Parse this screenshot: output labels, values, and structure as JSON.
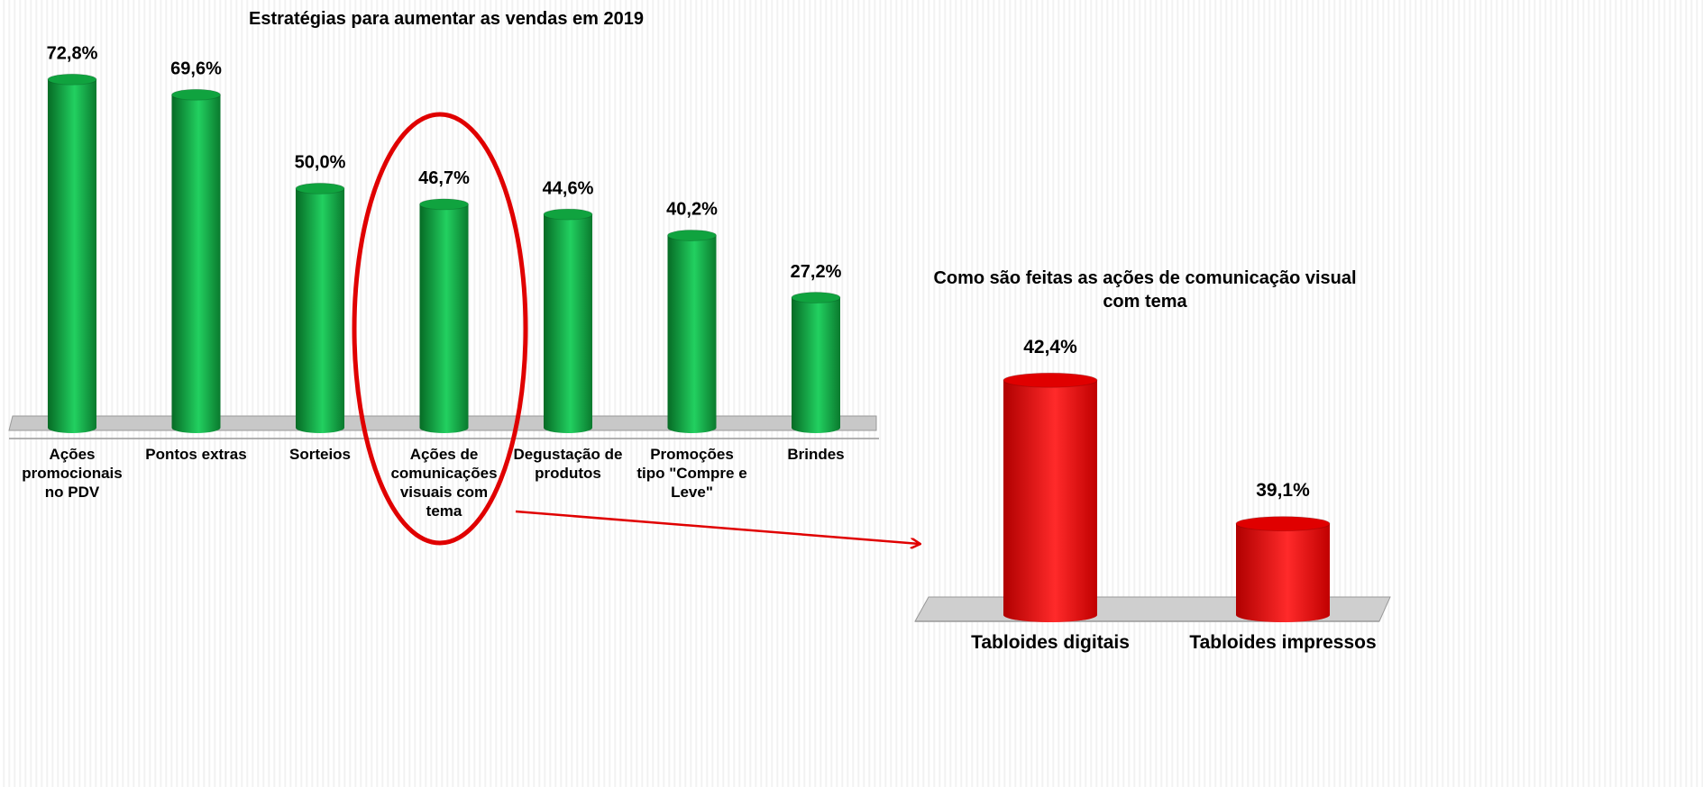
{
  "chart_data": [
    {
      "type": "bar",
      "title": "Estratégias para aumentar as vendas em 2019",
      "categories": [
        "Ações promocionais no PDV",
        "Pontos extras",
        "Sorteios",
        "Ações de comunicações visuais com tema",
        "Degustação de produtos",
        "Promoções tipo \"Compre e Leve\"",
        "Brindes"
      ],
      "values": [
        72.8,
        69.6,
        50.0,
        46.7,
        44.6,
        40.2,
        27.2
      ],
      "value_labels": [
        "72,8%",
        "69,6%",
        "50,0%",
        "46,7%",
        "44,6%",
        "40,2%",
        "27,2%"
      ],
      "color": "#10a33f",
      "ylim": [
        0,
        80
      ]
    },
    {
      "type": "bar",
      "title": "Como são feitas as ações de comunicação visual com tema",
      "categories": [
        "Tabloides digitais",
        "Tabloides impressos"
      ],
      "values": [
        42.4,
        39.1
      ],
      "value_labels": [
        "42,4%",
        "39,1%"
      ],
      "color": "#e00000",
      "ylim": [
        37,
        44
      ]
    }
  ]
}
